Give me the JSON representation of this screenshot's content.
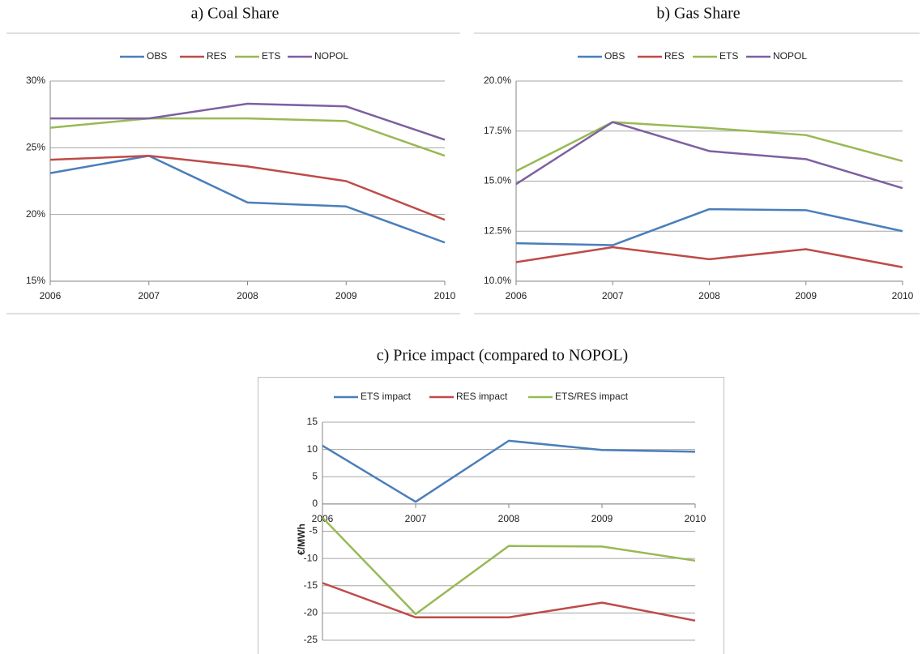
{
  "chart_data": [
    {
      "type": "line",
      "title": "a) Coal Share",
      "categories": [
        "2006",
        "2007",
        "2008",
        "2009",
        "2010"
      ],
      "series": [
        {
          "name": "OBS",
          "color": "#4a7ebb",
          "values": [
            23.1,
            24.4,
            20.9,
            20.6,
            17.9
          ]
        },
        {
          "name": "RES",
          "color": "#be4b48",
          "values": [
            24.1,
            24.4,
            23.6,
            22.5,
            19.6
          ]
        },
        {
          "name": "ETS",
          "color": "#98b954",
          "values": [
            26.5,
            27.2,
            27.2,
            27.0,
            24.4
          ]
        },
        {
          "name": "NOPOL",
          "color": "#7d60a0",
          "values": [
            27.2,
            27.2,
            28.3,
            28.1,
            25.6
          ]
        }
      ],
      "ylim": [
        15,
        30
      ],
      "yticks": [
        {
          "value": 15,
          "label": "15%"
        },
        {
          "value": 20,
          "label": "20%"
        },
        {
          "value": 25,
          "label": "25%"
        },
        {
          "value": 30,
          "label": "30%"
        }
      ],
      "grid": true,
      "legend": "top"
    },
    {
      "type": "line",
      "title": "b) Gas Share",
      "categories": [
        "2006",
        "2007",
        "2008",
        "2009",
        "2010"
      ],
      "series": [
        {
          "name": "OBS",
          "color": "#4a7ebb",
          "values": [
            11.9,
            11.8,
            13.6,
            13.55,
            12.5
          ]
        },
        {
          "name": "RES",
          "color": "#be4b48",
          "values": [
            10.95,
            11.7,
            11.1,
            11.6,
            10.7
          ]
        },
        {
          "name": "ETS",
          "color": "#98b954",
          "values": [
            15.5,
            17.95,
            17.65,
            17.3,
            16.0
          ]
        },
        {
          "name": "NOPOL",
          "color": "#7d60a0",
          "values": [
            14.85,
            17.95,
            16.5,
            16.1,
            14.65
          ]
        }
      ],
      "ylim": [
        10,
        20
      ],
      "yticks": [
        {
          "value": 10,
          "label": "10.0%"
        },
        {
          "value": 12.5,
          "label": "12.5%"
        },
        {
          "value": 15,
          "label": "15.0%"
        },
        {
          "value": 17.5,
          "label": "17.5%"
        },
        {
          "value": 20,
          "label": "20.0%"
        }
      ],
      "grid": true,
      "legend": "top"
    },
    {
      "type": "line",
      "title": "c) Price impact (compared to NOPOL)",
      "y_label": "€/MWh",
      "categories": [
        "2006",
        "2007",
        "2008",
        "2009",
        "2010"
      ],
      "series": [
        {
          "name": "ETS impact",
          "color": "#4a7ebb",
          "values": [
            10.7,
            0.4,
            11.6,
            9.9,
            9.6
          ]
        },
        {
          "name": "RES impact",
          "color": "#be4b48",
          "values": [
            -14.5,
            -20.8,
            -20.8,
            -18.1,
            -21.4
          ]
        },
        {
          "name": "ETS/RES impact",
          "color": "#98b954",
          "values": [
            -2.5,
            -20.2,
            -7.7,
            -7.8,
            -10.4
          ]
        }
      ],
      "ylim": [
        -25,
        15
      ],
      "yticks": [
        -25,
        -20,
        -15,
        -10,
        -5,
        0,
        5,
        10,
        15
      ],
      "grid": true,
      "legend": "top"
    }
  ]
}
